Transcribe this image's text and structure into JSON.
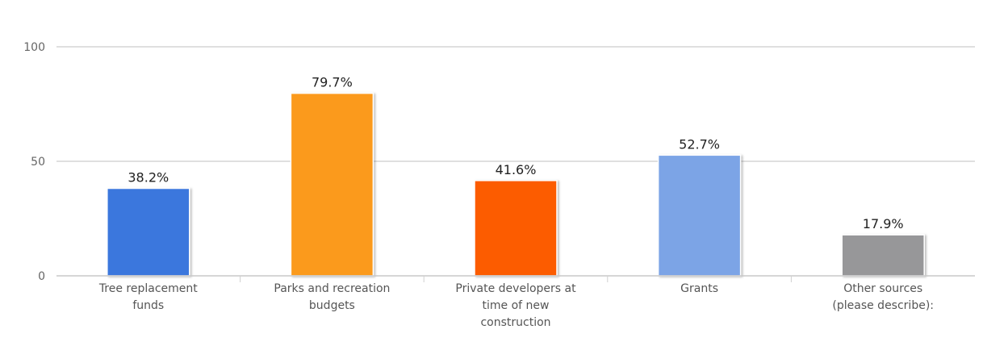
{
  "chart_data": {
    "type": "bar",
    "categories": [
      [
        "Tree replacement",
        "funds"
      ],
      [
        "Parks and recreation",
        "budgets"
      ],
      [
        "Private developers at",
        "time of new",
        "construction"
      ],
      [
        "Grants"
      ],
      [
        "Other sources",
        "(please describe):"
      ]
    ],
    "values": [
      38.2,
      79.7,
      41.6,
      52.7,
      17.9
    ],
    "data_labels": [
      "38.2%",
      "79.7%",
      "41.6%",
      "52.7%",
      "17.9%"
    ],
    "colors": [
      "#3a77dd",
      "#fb9a1e",
      "#fc5b05",
      "#7ba4e6",
      "#979799"
    ],
    "yticks": [
      "0",
      "50",
      "100"
    ],
    "ylim": [
      0,
      100
    ],
    "grid": true,
    "legend": "none"
  }
}
